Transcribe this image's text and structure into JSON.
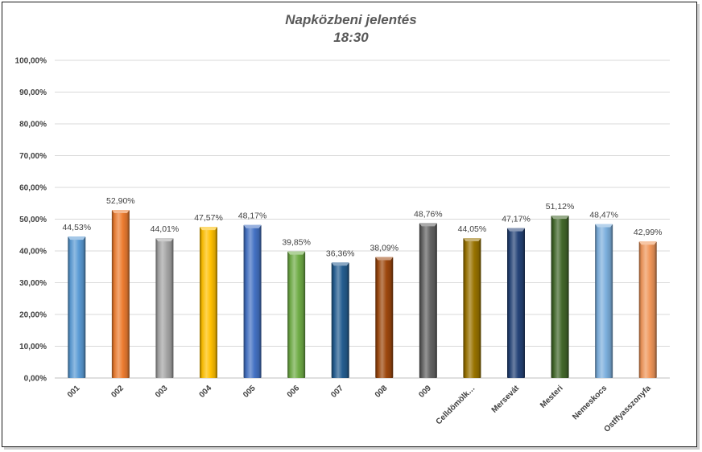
{
  "chart_data": {
    "type": "bar",
    "title": "Napközbeni jelentés",
    "subtitle": "18:30",
    "xlabel": "",
    "ylabel": "",
    "ylim": [
      0,
      100
    ],
    "yticks": [
      "0,00%",
      "10,00%",
      "20,00%",
      "30,00%",
      "40,00%",
      "50,00%",
      "60,00%",
      "70,00%",
      "80,00%",
      "90,00%",
      "100,00%"
    ],
    "grid": true,
    "legend": "none",
    "categories": [
      "001",
      "002",
      "003",
      "004",
      "005",
      "006",
      "007",
      "008",
      "009",
      "Celldömölk…",
      "Mersevát",
      "Mesteri",
      "Nemeskocs",
      "Ostffyasszonyfa"
    ],
    "values": [
      44.53,
      52.9,
      44.01,
      47.57,
      48.17,
      39.85,
      36.36,
      38.09,
      48.76,
      44.05,
      47.17,
      51.12,
      48.47,
      42.99
    ],
    "labels": [
      "44,53%",
      "52,90%",
      "44,01%",
      "47,57%",
      "48,17%",
      "39,85%",
      "36,36%",
      "38,09%",
      "48,76%",
      "44,05%",
      "47,17%",
      "51,12%",
      "48,47%",
      "42,99%"
    ],
    "colors": [
      "#5b9bd5",
      "#ed7d31",
      "#a5a5a5",
      "#ffc000",
      "#4472c4",
      "#70ad47",
      "#255e91",
      "#9e480e",
      "#636363",
      "#997300",
      "#264478",
      "#43682b",
      "#7cafdd",
      "#f1975a"
    ]
  }
}
